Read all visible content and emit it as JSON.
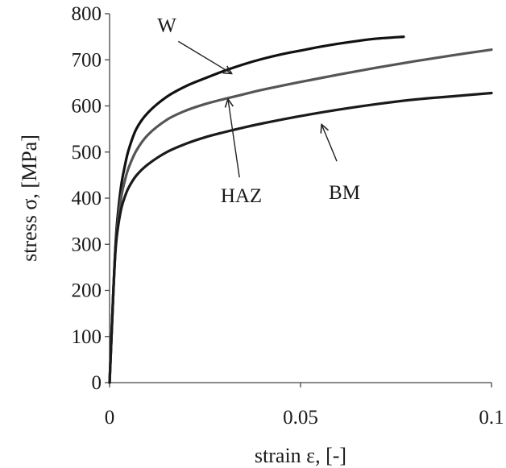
{
  "chart_data": {
    "type": "line",
    "xlabel": "strain ε, [-]",
    "ylabel": "stress σ, [MPa]",
    "xlim": [
      0,
      0.1
    ],
    "ylim": [
      0,
      800
    ],
    "x_ticks": [
      "0",
      "0.05",
      "0.1"
    ],
    "y_ticks": [
      "0",
      "100",
      "200",
      "300",
      "400",
      "500",
      "600",
      "700",
      "800"
    ],
    "grid": false,
    "legend": "none",
    "series": [
      {
        "name": "W",
        "color": "#111111",
        "x": [
          0,
          0.0005,
          0.001,
          0.0015,
          0.002,
          0.003,
          0.004,
          0.005,
          0.007,
          0.01,
          0.015,
          0.02,
          0.025,
          0.03,
          0.035,
          0.04,
          0.045,
          0.05,
          0.055,
          0.06,
          0.065,
          0.07,
          0.077
        ],
        "y": [
          0,
          100,
          200,
          290,
          350,
          425,
          470,
          505,
          550,
          585,
          620,
          643,
          660,
          676,
          690,
          702,
          712,
          720,
          728,
          735,
          741,
          746,
          750
        ]
      },
      {
        "name": "HAZ",
        "color": "#555555",
        "x": [
          0,
          0.0005,
          0.001,
          0.0015,
          0.002,
          0.003,
          0.004,
          0.005,
          0.007,
          0.01,
          0.015,
          0.02,
          0.025,
          0.03,
          0.035,
          0.04,
          0.05,
          0.06,
          0.07,
          0.08,
          0.09,
          0.1
        ],
        "y": [
          0,
          100,
          200,
          285,
          335,
          400,
          438,
          466,
          503,
          537,
          570,
          590,
          604,
          615,
          625,
          635,
          652,
          668,
          683,
          697,
          710,
          722
        ]
      },
      {
        "name": "BM",
        "color": "#1a1a1a",
        "x": [
          0,
          0.0005,
          0.001,
          0.0015,
          0.002,
          0.003,
          0.004,
          0.005,
          0.007,
          0.01,
          0.015,
          0.02,
          0.025,
          0.03,
          0.035,
          0.04,
          0.05,
          0.06,
          0.07,
          0.08,
          0.09,
          0.1
        ],
        "y": [
          0,
          100,
          200,
          280,
          325,
          375,
          403,
          423,
          449,
          473,
          500,
          518,
          532,
          543,
          553,
          562,
          578,
          592,
          604,
          614,
          621,
          628
        ]
      }
    ],
    "annotations": [
      {
        "text": "W",
        "series": "W",
        "label_at": [
          0.015,
          775
        ],
        "arrow_from": [
          0.018,
          740
        ],
        "arrow_to": [
          0.032,
          670
        ]
      },
      {
        "text": "HAZ",
        "series": "HAZ",
        "label_at": [
          0.0345,
          405
        ],
        "arrow_from": [
          0.034,
          445
        ],
        "arrow_to": [
          0.031,
          615
        ]
      },
      {
        "text": "BM",
        "series": "BM",
        "label_at": [
          0.0615,
          412
        ],
        "arrow_from": [
          0.0595,
          480
        ],
        "arrow_to": [
          0.0555,
          560
        ]
      }
    ]
  }
}
